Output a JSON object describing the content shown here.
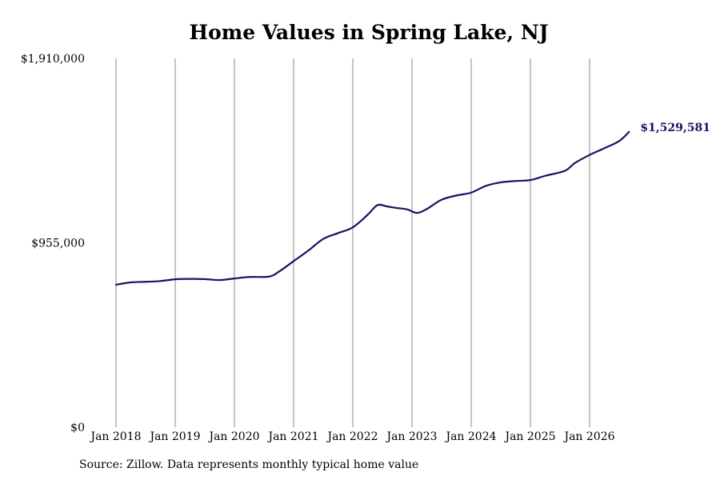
{
  "chart_data": {
    "type": "line",
    "title": "Home Values in Spring Lake, NJ",
    "xlabel": "",
    "ylabel": "",
    "source": "Source: Zillow. Data represents monthly typical home value",
    "ylim": [
      0,
      1910000
    ],
    "y_ticks": [
      {
        "value": 0,
        "label": "$0"
      },
      {
        "value": 955000,
        "label": "$955,000"
      },
      {
        "value": 1910000,
        "label": "$1,910,000"
      }
    ],
    "x_ticks": [
      {
        "date": "2018-01",
        "label": "Jan 2018"
      },
      {
        "date": "2019-01",
        "label": "Jan 2019"
      },
      {
        "date": "2020-01",
        "label": "Jan 2020"
      },
      {
        "date": "2021-01",
        "label": "Jan 2021"
      },
      {
        "date": "2022-01",
        "label": "Jan 2022"
      },
      {
        "date": "2023-01",
        "label": "Jan 2023"
      },
      {
        "date": "2024-01",
        "label": "Jan 2024"
      },
      {
        "date": "2025-01",
        "label": "Jan 2025"
      },
      {
        "date": "2026-01",
        "label": "Jan 2026"
      }
    ],
    "grid": "vertical",
    "line_color": "#141463",
    "end_label": "$1,529,581",
    "series": [
      {
        "points": [
          {
            "x": "2018-01",
            "y": 738000
          },
          {
            "x": "2018-04",
            "y": 750000
          },
          {
            "x": "2018-07",
            "y": 753000
          },
          {
            "x": "2018-10",
            "y": 757000
          },
          {
            "x": "2019-01",
            "y": 766000
          },
          {
            "x": "2019-04",
            "y": 768000
          },
          {
            "x": "2019-07",
            "y": 767000
          },
          {
            "x": "2019-10",
            "y": 762000
          },
          {
            "x": "2020-01",
            "y": 770000
          },
          {
            "x": "2020-04",
            "y": 778000
          },
          {
            "x": "2020-08",
            "y": 780000
          },
          {
            "x": "2020-10",
            "y": 805000
          },
          {
            "x": "2021-01",
            "y": 860000
          },
          {
            "x": "2021-04",
            "y": 915000
          },
          {
            "x": "2021-07",
            "y": 975000
          },
          {
            "x": "2021-10",
            "y": 1005000
          },
          {
            "x": "2022-01",
            "y": 1035000
          },
          {
            "x": "2022-04",
            "y": 1100000
          },
          {
            "x": "2022-06",
            "y": 1150000
          },
          {
            "x": "2022-08",
            "y": 1143000
          },
          {
            "x": "2022-10",
            "y": 1135000
          },
          {
            "x": "2022-12",
            "y": 1128000
          },
          {
            "x": "2023-02",
            "y": 1110000
          },
          {
            "x": "2023-04",
            "y": 1130000
          },
          {
            "x": "2023-07",
            "y": 1178000
          },
          {
            "x": "2023-10",
            "y": 1200000
          },
          {
            "x": "2024-01",
            "y": 1215000
          },
          {
            "x": "2024-04",
            "y": 1250000
          },
          {
            "x": "2024-07",
            "y": 1268000
          },
          {
            "x": "2024-10",
            "y": 1275000
          },
          {
            "x": "2025-01",
            "y": 1280000
          },
          {
            "x": "2025-04",
            "y": 1302000
          },
          {
            "x": "2025-08",
            "y": 1328000
          },
          {
            "x": "2025-10",
            "y": 1368000
          },
          {
            "x": "2026-01",
            "y": 1410000
          },
          {
            "x": "2026-04",
            "y": 1445000
          },
          {
            "x": "2026-07",
            "y": 1482000
          },
          {
            "x": "2026-09",
            "y": 1529581
          }
        ]
      }
    ]
  }
}
